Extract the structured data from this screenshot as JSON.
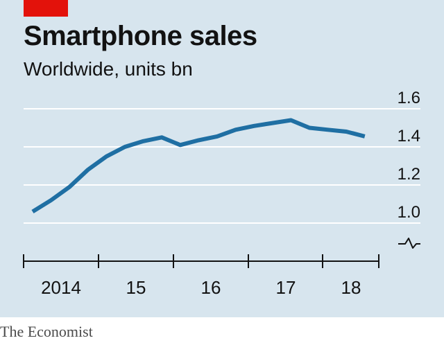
{
  "header": {
    "title": "Smartphone sales",
    "subtitle": "Worldwide, units bn"
  },
  "footer": {
    "source": "The Economist"
  },
  "colors": {
    "background": "#d7e5ee",
    "accent_tag": "#e3120b",
    "line": "#1f6fa3",
    "grid": "#ffffff",
    "axis": "#121212"
  },
  "chart_data": {
    "type": "line",
    "title": "Smartphone sales",
    "subtitle": "Worldwide, units bn",
    "xlabel": "",
    "ylabel": "",
    "x_tick_labels": [
      "2014",
      "15",
      "16",
      "17",
      "18"
    ],
    "y_tick_labels": [
      "1.6",
      "1.4",
      "1.2",
      "1.0"
    ],
    "ylim": [
      1.0,
      1.6
    ],
    "y_axis_break": true,
    "grid": "horizontal",
    "series": [
      {
        "x": [
          "2014 Q1",
          "2014 Q2",
          "2014 Q3",
          "2014 Q4",
          "2015 Q1",
          "2015 Q2",
          "2015 Q3",
          "2015 Q4",
          "2016 Q1",
          "2016 Q2",
          "2016 Q3",
          "2016 Q4",
          "2017 Q1",
          "2017 Q2",
          "2017 Q3",
          "2017 Q4",
          "2018 Q1",
          "2018 Q2",
          "2018 Q3"
        ],
        "values": [
          1.06,
          1.12,
          1.19,
          1.28,
          1.35,
          1.4,
          1.43,
          1.45,
          1.41,
          1.435,
          1.455,
          1.49,
          1.51,
          1.525,
          1.54,
          1.5,
          1.49,
          1.48,
          1.455
        ]
      }
    ]
  }
}
